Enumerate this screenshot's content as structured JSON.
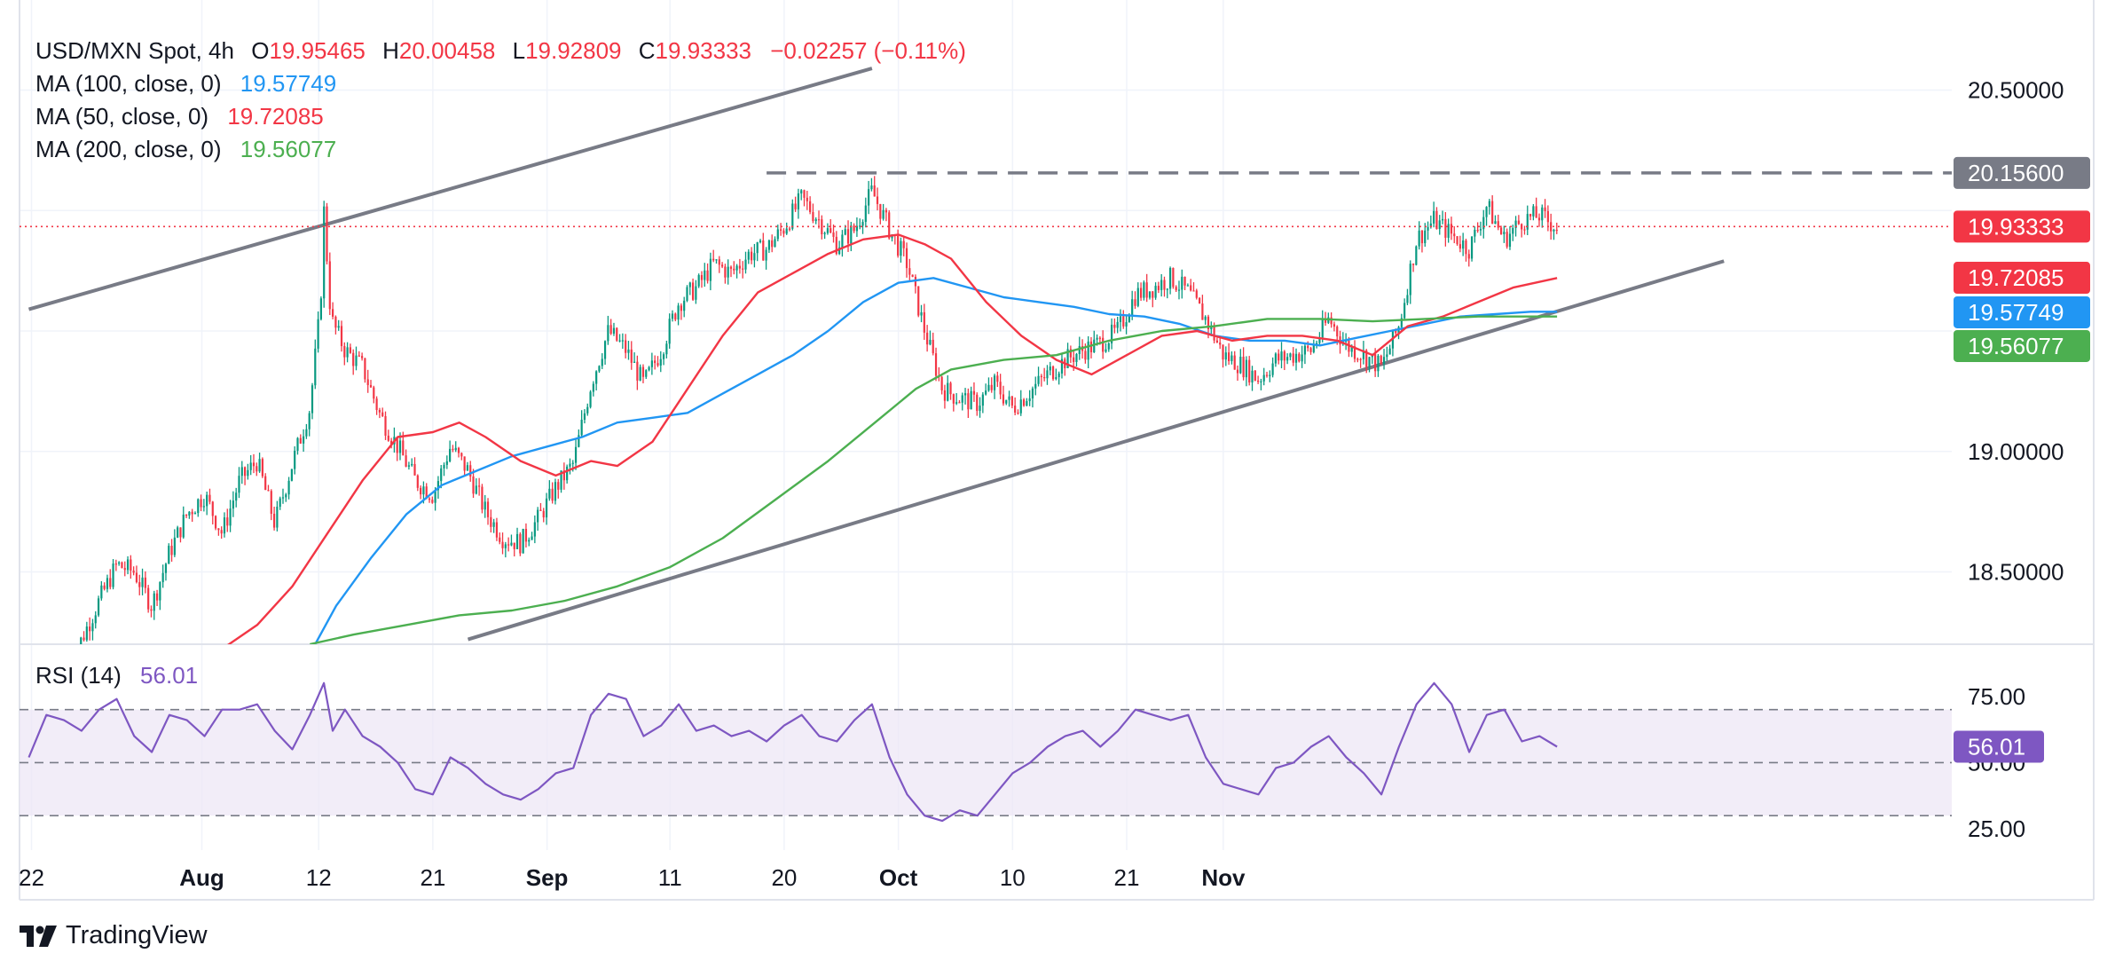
{
  "colors": {
    "up": "#089981",
    "down": "#f23645",
    "ma100": "#2196f3",
    "ma50": "#f23645",
    "ma200": "#4caf50",
    "rsi": "#7e57c2",
    "trendline": "#787b86",
    "resistance": "#787b86",
    "text": "#131722"
  },
  "chart_data": [
    {
      "type": "candlestick",
      "title": "USD/MXN Spot, 4h",
      "ohlc": {
        "o_label": "O",
        "o": "19.95465",
        "h_label": "H",
        "h": "20.00458",
        "l_label": "L",
        "l": "19.92809",
        "c_label": "C",
        "c": "19.93333",
        "change": "−0.02257 (−0.11%)"
      },
      "ylim": [
        18.2,
        20.8
      ],
      "y_ticks": [
        "20.50000",
        "19.00000",
        "18.50000"
      ],
      "x_ticks": [
        "22",
        "Aug",
        "12",
        "21",
        "Sep",
        "11",
        "20",
        "Oct",
        "10",
        "21",
        "Nov"
      ],
      "close_series": [
        [
          -0.1,
          18.1
        ],
        [
          0.5,
          18.22
        ],
        [
          1.5,
          18.38
        ],
        [
          2.5,
          18.53
        ],
        [
          3.5,
          18.5
        ],
        [
          4.5,
          18.36
        ],
        [
          5.5,
          18.58
        ],
        [
          6.5,
          18.74
        ],
        [
          7.5,
          18.82
        ],
        [
          8.5,
          18.66
        ],
        [
          9.5,
          18.88
        ],
        [
          10.5,
          18.96
        ],
        [
          11.5,
          18.7
        ],
        [
          12.5,
          18.95
        ],
        [
          13.5,
          19.18
        ],
        [
          14.1,
          19.6
        ],
        [
          14.3,
          20.0
        ],
        [
          14.7,
          19.55
        ],
        [
          15.5,
          19.42
        ],
        [
          16.5,
          19.35
        ],
        [
          17.5,
          19.15
        ],
        [
          18.5,
          19.02
        ],
        [
          19.5,
          18.88
        ],
        [
          20.5,
          18.82
        ],
        [
          21.5,
          19.02
        ],
        [
          22.5,
          18.92
        ],
        [
          23.5,
          18.75
        ],
        [
          24.5,
          18.64
        ],
        [
          25.5,
          18.62
        ],
        [
          26.5,
          18.72
        ],
        [
          27.5,
          18.85
        ],
        [
          28.5,
          18.95
        ],
        [
          29.5,
          19.28
        ],
        [
          30.5,
          19.5
        ],
        [
          31.5,
          19.42
        ],
        [
          32.5,
          19.28
        ],
        [
          33.5,
          19.42
        ],
        [
          34.5,
          19.62
        ],
        [
          35.5,
          19.68
        ],
        [
          36.5,
          19.78
        ],
        [
          37.5,
          19.74
        ],
        [
          38.5,
          19.82
        ],
        [
          39.5,
          19.84
        ],
        [
          40.5,
          19.93
        ],
        [
          41.5,
          20.05
        ],
        [
          42.5,
          19.96
        ],
        [
          43.5,
          19.86
        ],
        [
          44.5,
          19.92
        ],
        [
          45.5,
          20.08
        ],
        [
          46.5,
          19.92
        ],
        [
          47.5,
          19.78
        ],
        [
          48.5,
          19.5
        ],
        [
          49.5,
          19.26
        ],
        [
          50.5,
          19.22
        ],
        [
          51.5,
          19.2
        ],
        [
          52.5,
          19.28
        ],
        [
          53.5,
          19.18
        ],
        [
          54.5,
          19.25
        ],
        [
          55.5,
          19.32
        ],
        [
          56.5,
          19.38
        ],
        [
          57.5,
          19.42
        ],
        [
          58.5,
          19.45
        ],
        [
          59.5,
          19.5
        ],
        [
          60.5,
          19.65
        ],
        [
          61.5,
          19.68
        ],
        [
          62.5,
          19.72
        ],
        [
          63.5,
          19.66
        ],
        [
          64.5,
          19.55
        ],
        [
          65.5,
          19.4
        ],
        [
          66.5,
          19.36
        ],
        [
          67.5,
          19.3
        ],
        [
          68.5,
          19.38
        ],
        [
          69.5,
          19.4
        ],
        [
          70.5,
          19.42
        ],
        [
          71.5,
          19.55
        ],
        [
          72.5,
          19.44
        ],
        [
          73.5,
          19.4
        ],
        [
          74.5,
          19.35
        ],
        [
          75.5,
          19.52
        ],
        [
          76.5,
          19.88
        ],
        [
          77.5,
          19.96
        ],
        [
          78.5,
          19.9
        ],
        [
          79.5,
          19.84
        ],
        [
          80.5,
          20.02
        ],
        [
          81.5,
          19.88
        ],
        [
          82.5,
          19.96
        ],
        [
          83.5,
          19.98
        ],
        [
          84.5,
          19.93
        ]
      ],
      "series": [
        {
          "name": "MA (100, close, 0)",
          "value": "19.57749",
          "points": [
            [
              13.5,
              18.16
            ],
            [
              15.0,
              18.36
            ],
            [
              17.0,
              18.56
            ],
            [
              19.0,
              18.74
            ],
            [
              21.0,
              18.86
            ],
            [
              23.0,
              18.92
            ],
            [
              25.0,
              18.98
            ],
            [
              27.0,
              19.02
            ],
            [
              29.0,
              19.06
            ],
            [
              31.0,
              19.12
            ],
            [
              33.0,
              19.14
            ],
            [
              35.0,
              19.16
            ],
            [
              37.0,
              19.24
            ],
            [
              39.0,
              19.32
            ],
            [
              41.0,
              19.4
            ],
            [
              43.0,
              19.5
            ],
            [
              45.0,
              19.62
            ],
            [
              47.0,
              19.7
            ],
            [
              49.0,
              19.72
            ],
            [
              51.0,
              19.68
            ],
            [
              53.0,
              19.64
            ],
            [
              55.0,
              19.62
            ],
            [
              57.0,
              19.6
            ],
            [
              59.0,
              19.57
            ],
            [
              61.0,
              19.56
            ],
            [
              63.0,
              19.53
            ],
            [
              65.0,
              19.48
            ],
            [
              67.0,
              19.46
            ],
            [
              69.0,
              19.46
            ],
            [
              71.0,
              19.44
            ],
            [
              73.0,
              19.47
            ],
            [
              75.0,
              19.5
            ],
            [
              77.0,
              19.53
            ],
            [
              79.0,
              19.56
            ],
            [
              81.0,
              19.57
            ],
            [
              83.0,
              19.58
            ],
            [
              84.5,
              19.58
            ]
          ]
        },
        {
          "name": "MA (50, close, 0)",
          "value": "19.72085",
          "points": [
            [
              8.5,
              18.18
            ],
            [
              10.5,
              18.28
            ],
            [
              12.5,
              18.44
            ],
            [
              14.5,
              18.66
            ],
            [
              16.5,
              18.88
            ],
            [
              18.5,
              19.06
            ],
            [
              20.5,
              19.08
            ],
            [
              22.0,
              19.12
            ],
            [
              23.5,
              19.06
            ],
            [
              25.5,
              18.96
            ],
            [
              27.5,
              18.9
            ],
            [
              29.5,
              18.96
            ],
            [
              31.0,
              18.94
            ],
            [
              33.0,
              19.04
            ],
            [
              35.0,
              19.26
            ],
            [
              37.0,
              19.48
            ],
            [
              39.0,
              19.66
            ],
            [
              41.0,
              19.74
            ],
            [
              43.0,
              19.82
            ],
            [
              45.0,
              19.88
            ],
            [
              47.0,
              19.9
            ],
            [
              48.5,
              19.86
            ],
            [
              50.0,
              19.8
            ],
            [
              52.0,
              19.62
            ],
            [
              54.0,
              19.48
            ],
            [
              56.0,
              19.38
            ],
            [
              58.0,
              19.32
            ],
            [
              60.0,
              19.4
            ],
            [
              62.0,
              19.48
            ],
            [
              64.0,
              19.5
            ],
            [
              66.0,
              19.46
            ],
            [
              68.0,
              19.48
            ],
            [
              70.0,
              19.48
            ],
            [
              72.0,
              19.46
            ],
            [
              74.0,
              19.4
            ],
            [
              76.0,
              19.52
            ],
            [
              78.0,
              19.56
            ],
            [
              80.0,
              19.62
            ],
            [
              82.0,
              19.68
            ],
            [
              84.5,
              19.72
            ]
          ]
        },
        {
          "name": "MA (200, close, 0)",
          "value": "19.56077",
          "points": [
            [
              13.5,
              18.2
            ],
            [
              16.0,
              18.24
            ],
            [
              19.0,
              18.28
            ],
            [
              22.0,
              18.32
            ],
            [
              25.0,
              18.34
            ],
            [
              28.0,
              18.38
            ],
            [
              31.0,
              18.44
            ],
            [
              34.0,
              18.52
            ],
            [
              37.0,
              18.64
            ],
            [
              40.0,
              18.8
            ],
            [
              43.0,
              18.96
            ],
            [
              46.0,
              19.14
            ],
            [
              48.0,
              19.26
            ],
            [
              50.0,
              19.34
            ],
            [
              53.0,
              19.38
            ],
            [
              56.0,
              19.4
            ],
            [
              59.0,
              19.46
            ],
            [
              62.0,
              19.5
            ],
            [
              65.0,
              19.52
            ],
            [
              68.0,
              19.55
            ],
            [
              71.0,
              19.55
            ],
            [
              74.0,
              19.54
            ],
            [
              77.0,
              19.55
            ],
            [
              80.0,
              19.56
            ],
            [
              84.5,
              19.56
            ]
          ]
        }
      ],
      "trendlines": [
        {
          "name": "upper",
          "points": [
            [
              -2.5,
              19.59
            ],
            [
              45.5,
              20.59
            ]
          ]
        },
        {
          "name": "lower",
          "points": [
            [
              22.5,
              18.22
            ],
            [
              94.0,
              19.79
            ]
          ]
        }
      ],
      "resistance": {
        "value": 20.156,
        "from_x": 39.5
      },
      "price_labels": [
        "20.15600",
        "19.93333",
        "19.72085",
        "19.57749",
        "19.56077"
      ]
    },
    {
      "type": "line",
      "title": "RSI (14)",
      "value": "56.01",
      "ylim": [
        17,
        94
      ],
      "levels": [
        70,
        50,
        30
      ],
      "y_ticks": [
        "75.00",
        "50.00",
        "25.00"
      ],
      "points": [
        [
          -2.5,
          52
        ],
        [
          -1.5,
          68
        ],
        [
          -0.5,
          66
        ],
        [
          0.5,
          62
        ],
        [
          1.5,
          70
        ],
        [
          2.5,
          74
        ],
        [
          3.5,
          60
        ],
        [
          4.5,
          54
        ],
        [
          5.5,
          68
        ],
        [
          6.5,
          66
        ],
        [
          7.5,
          60
        ],
        [
          8.5,
          70
        ],
        [
          9.5,
          70
        ],
        [
          10.5,
          72
        ],
        [
          11.5,
          62
        ],
        [
          12.5,
          55
        ],
        [
          13.5,
          68
        ],
        [
          14.3,
          80
        ],
        [
          14.8,
          62
        ],
        [
          15.5,
          70
        ],
        [
          16.5,
          60
        ],
        [
          17.5,
          56
        ],
        [
          18.5,
          50
        ],
        [
          19.5,
          40
        ],
        [
          20.5,
          38
        ],
        [
          21.5,
          52
        ],
        [
          22.5,
          48
        ],
        [
          23.5,
          42
        ],
        [
          24.5,
          38
        ],
        [
          25.5,
          36
        ],
        [
          26.5,
          40
        ],
        [
          27.5,
          46
        ],
        [
          28.5,
          48
        ],
        [
          29.5,
          68
        ],
        [
          30.5,
          76
        ],
        [
          31.5,
          74
        ],
        [
          32.5,
          60
        ],
        [
          33.5,
          64
        ],
        [
          34.5,
          72
        ],
        [
          35.5,
          62
        ],
        [
          36.5,
          64
        ],
        [
          37.5,
          60
        ],
        [
          38.5,
          62
        ],
        [
          39.5,
          58
        ],
        [
          40.5,
          64
        ],
        [
          41.5,
          68
        ],
        [
          42.5,
          60
        ],
        [
          43.5,
          58
        ],
        [
          44.5,
          66
        ],
        [
          45.5,
          72
        ],
        [
          46.5,
          52
        ],
        [
          47.5,
          38
        ],
        [
          48.5,
          30
        ],
        [
          49.5,
          28
        ],
        [
          50.5,
          32
        ],
        [
          51.5,
          30
        ],
        [
          52.5,
          38
        ],
        [
          53.5,
          46
        ],
        [
          54.5,
          50
        ],
        [
          55.5,
          56
        ],
        [
          56.5,
          60
        ],
        [
          57.5,
          62
        ],
        [
          58.5,
          56
        ],
        [
          59.5,
          62
        ],
        [
          60.5,
          70
        ],
        [
          61.5,
          68
        ],
        [
          62.5,
          66
        ],
        [
          63.5,
          68
        ],
        [
          64.5,
          52
        ],
        [
          65.5,
          42
        ],
        [
          66.5,
          40
        ],
        [
          67.5,
          38
        ],
        [
          68.5,
          48
        ],
        [
          69.5,
          50
        ],
        [
          70.5,
          56
        ],
        [
          71.5,
          60
        ],
        [
          72.5,
          52
        ],
        [
          73.5,
          46
        ],
        [
          74.5,
          38
        ],
        [
          75.5,
          56
        ],
        [
          76.5,
          72
        ],
        [
          77.5,
          80
        ],
        [
          78.5,
          72
        ],
        [
          79.5,
          54
        ],
        [
          80.5,
          68
        ],
        [
          81.5,
          70
        ],
        [
          82.5,
          58
        ],
        [
          83.5,
          60
        ],
        [
          84.5,
          56
        ]
      ]
    }
  ],
  "brand": {
    "name": "TradingView"
  }
}
